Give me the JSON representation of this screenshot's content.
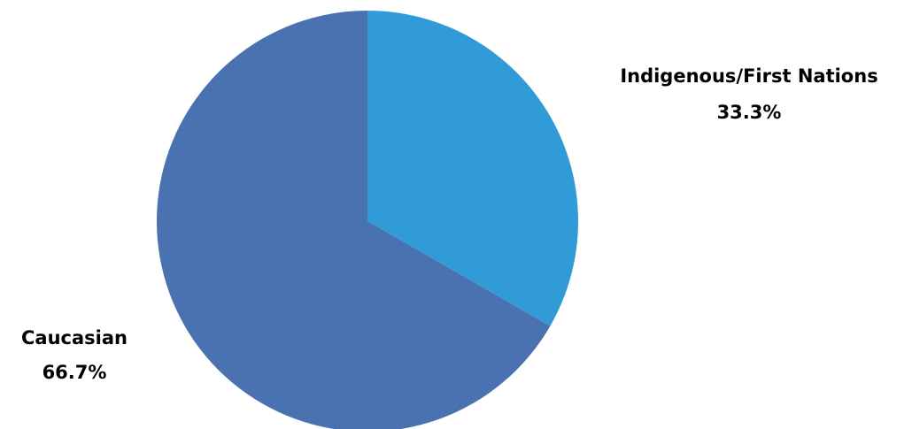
{
  "chart_data": {
    "type": "pie",
    "title": "",
    "start_angle_deg": 0,
    "direction": "clockwise",
    "slices": [
      {
        "label": "Indigenous/First Nations",
        "value": 33.3,
        "value_label": "33.3%",
        "color": "#319bd7"
      },
      {
        "label": "Caucasian",
        "value": 66.7,
        "value_label": "66.7%",
        "color": "#4a71b0"
      }
    ]
  }
}
